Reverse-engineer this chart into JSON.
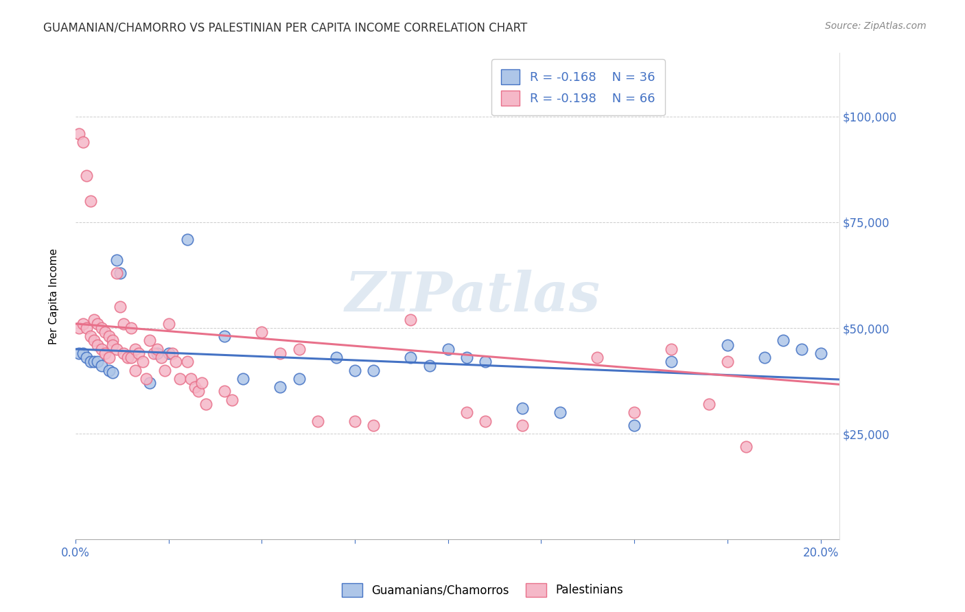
{
  "title": "GUAMANIAN/CHAMORRO VS PALESTINIAN PER CAPITA INCOME CORRELATION CHART",
  "source": "Source: ZipAtlas.com",
  "ylabel": "Per Capita Income",
  "ytick_labels": [
    "$25,000",
    "$50,000",
    "$75,000",
    "$100,000"
  ],
  "ytick_values": [
    25000,
    50000,
    75000,
    100000
  ],
  "legend_blue_label": "R = -0.168    N = 36",
  "legend_pink_label": "R = -0.198    N = 66",
  "legend_label_blue": "Guamanians/Chamorros",
  "legend_label_pink": "Palestinians",
  "watermark": "ZIPatlas",
  "color_blue": "#aec6e8",
  "color_pink": "#f5b8c8",
  "line_blue": "#4472c4",
  "line_pink": "#e8708a",
  "axis_color": "#4472c4",
  "xlim": [
    0.0,
    0.205
  ],
  "ylim": [
    0,
    115000
  ],
  "blue_intercept": 45000,
  "blue_slope": -35000,
  "pink_intercept": 51000,
  "pink_slope": -70000,
  "blue_scatter_x": [
    0.001,
    0.002,
    0.003,
    0.004,
    0.005,
    0.006,
    0.007,
    0.009,
    0.01,
    0.011,
    0.012,
    0.02,
    0.022,
    0.025,
    0.03,
    0.04,
    0.045,
    0.055,
    0.06,
    0.07,
    0.075,
    0.08,
    0.09,
    0.095,
    0.1,
    0.105,
    0.11,
    0.12,
    0.13,
    0.15,
    0.16,
    0.175,
    0.185,
    0.19,
    0.195,
    0.2
  ],
  "blue_scatter_y": [
    44000,
    44000,
    43000,
    42000,
    42000,
    42000,
    41000,
    40000,
    39500,
    66000,
    63000,
    37000,
    44000,
    44000,
    71000,
    48000,
    38000,
    36000,
    38000,
    43000,
    40000,
    40000,
    43000,
    41000,
    45000,
    43000,
    42000,
    31000,
    30000,
    27000,
    42000,
    46000,
    43000,
    47000,
    45000,
    44000
  ],
  "pink_scatter_x": [
    0.001,
    0.001,
    0.002,
    0.002,
    0.003,
    0.003,
    0.004,
    0.004,
    0.005,
    0.005,
    0.006,
    0.006,
    0.007,
    0.007,
    0.008,
    0.008,
    0.009,
    0.009,
    0.01,
    0.01,
    0.011,
    0.011,
    0.012,
    0.013,
    0.013,
    0.014,
    0.015,
    0.015,
    0.016,
    0.016,
    0.017,
    0.018,
    0.019,
    0.02,
    0.021,
    0.022,
    0.023,
    0.024,
    0.025,
    0.026,
    0.027,
    0.028,
    0.03,
    0.031,
    0.032,
    0.033,
    0.034,
    0.035,
    0.04,
    0.042,
    0.05,
    0.055,
    0.06,
    0.065,
    0.075,
    0.08,
    0.09,
    0.105,
    0.11,
    0.12,
    0.14,
    0.15,
    0.16,
    0.17,
    0.175,
    0.18
  ],
  "pink_scatter_y": [
    96000,
    50000,
    94000,
    51000,
    86000,
    50000,
    80000,
    48000,
    52000,
    47000,
    51000,
    46000,
    50000,
    45000,
    49000,
    44000,
    48000,
    43000,
    47000,
    46000,
    63000,
    45000,
    55000,
    51000,
    44000,
    43000,
    50000,
    43000,
    45000,
    40000,
    44000,
    42000,
    38000,
    47000,
    44000,
    45000,
    43000,
    40000,
    51000,
    44000,
    42000,
    38000,
    42000,
    38000,
    36000,
    35000,
    37000,
    32000,
    35000,
    33000,
    49000,
    44000,
    45000,
    28000,
    28000,
    27000,
    52000,
    30000,
    28000,
    27000,
    43000,
    30000,
    45000,
    32000,
    42000,
    22000
  ]
}
